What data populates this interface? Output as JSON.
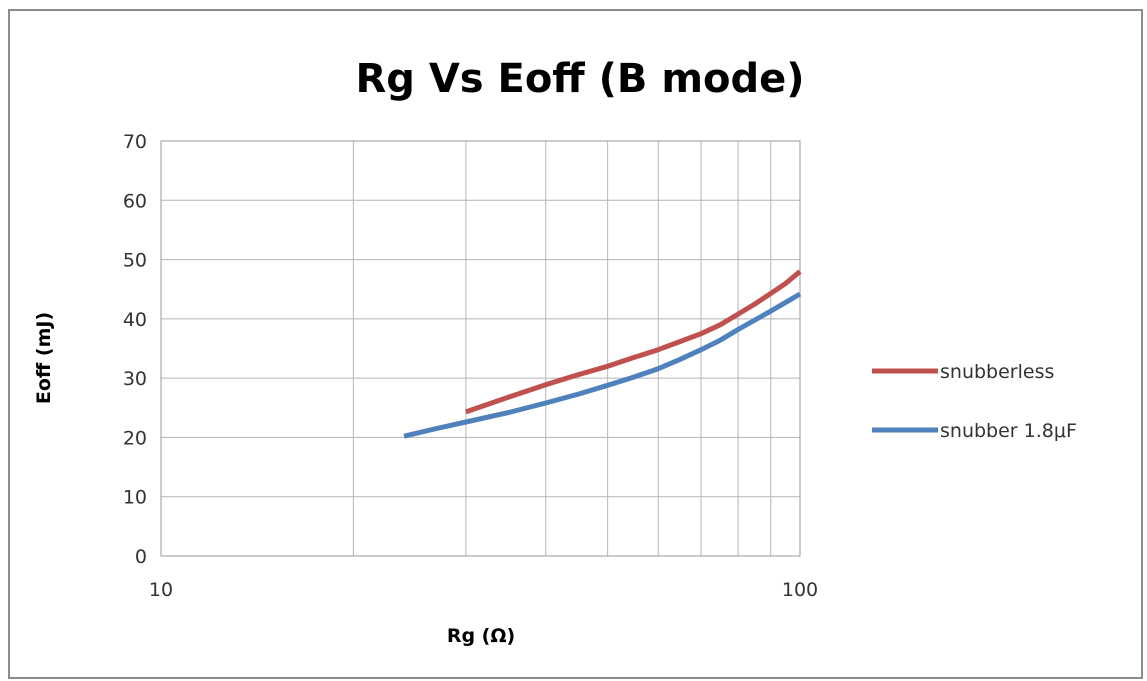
{
  "chart_data": {
    "type": "line",
    "title": "Rg Vs Eoff (B mode)",
    "xlabel": "Rg (Ω)",
    "ylabel": "Eoff (mJ)",
    "x_scale": "log",
    "xlim": [
      10,
      100
    ],
    "ylim": [
      0,
      70
    ],
    "x_tick_labels": [
      "10",
      "100"
    ],
    "y_ticks": [
      0,
      10,
      20,
      30,
      40,
      50,
      60,
      70
    ],
    "y_tick_labels": [
      "0",
      "10",
      "20",
      "30",
      "40",
      "50",
      "60",
      "70"
    ],
    "grid": true,
    "legend_position": "right",
    "series": [
      {
        "name": "snubberless",
        "color": "#c0504d",
        "x": [
          30,
          35,
          40,
          45,
          50,
          55,
          60,
          65,
          70,
          75,
          80,
          85,
          90,
          95,
          100
        ],
        "y": [
          24.3,
          26.8,
          28.9,
          30.6,
          32.0,
          33.5,
          34.8,
          36.2,
          37.5,
          39.0,
          40.8,
          42.5,
          44.3,
          46.0,
          48.0
        ]
      },
      {
        "name": "snubber 1.8μF",
        "color": "#4f81bd",
        "x": [
          24,
          27,
          30,
          35,
          40,
          45,
          50,
          55,
          60,
          65,
          70,
          75,
          80,
          85,
          90,
          95,
          100
        ],
        "y": [
          20.2,
          21.5,
          22.6,
          24.2,
          25.8,
          27.3,
          28.8,
          30.2,
          31.6,
          33.2,
          34.8,
          36.4,
          38.2,
          39.8,
          41.3,
          42.8,
          44.2
        ]
      }
    ]
  }
}
